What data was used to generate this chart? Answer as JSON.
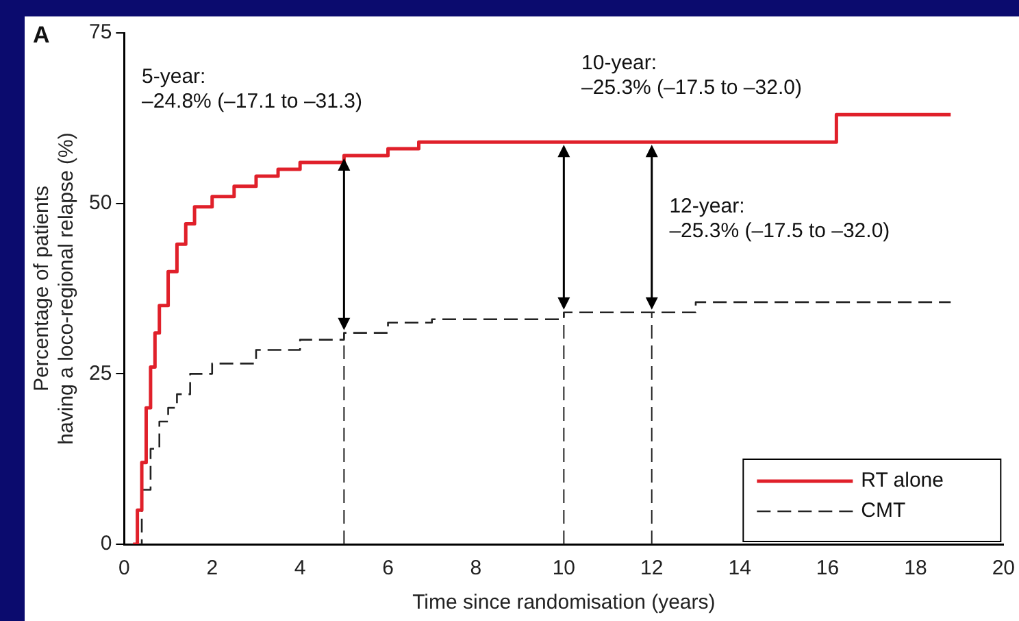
{
  "chart_data": {
    "type": "step",
    "xlabel": "Time since randomisation (years)",
    "ylabel": "Percentage of patients\nhaving a loco-regional relapse (%)",
    "xlim": [
      0,
      20
    ],
    "xticks": [
      0,
      2,
      4,
      6,
      8,
      10,
      12,
      14,
      16,
      18,
      20
    ],
    "ylim": [
      0,
      75
    ],
    "yticks": [
      0,
      25,
      50,
      75
    ],
    "grid": false,
    "legend": "bottom right",
    "marker": "none",
    "series": [
      {
        "name": "RT alone",
        "color": "#e0202a",
        "line_style": "solid",
        "x": [
          0.2,
          0.3,
          0.4,
          0.5,
          0.6,
          0.7,
          0.8,
          1.0,
          1.2,
          1.4,
          1.6,
          2.0,
          2.5,
          3.0,
          3.5,
          4.0,
          5.0,
          6.0,
          6.7,
          16.2,
          18.8
        ],
        "values": [
          0,
          5,
          12,
          20,
          26,
          31,
          35,
          40,
          44,
          47,
          49.5,
          51,
          52.5,
          54,
          55,
          56,
          57,
          58,
          59,
          63,
          63
        ]
      },
      {
        "name": "CMT",
        "color": "#222222",
        "line_style": "dashed",
        "x": [
          0.2,
          0.4,
          0.6,
          0.8,
          1.0,
          1.2,
          1.5,
          2.0,
          3.0,
          4.0,
          5.0,
          6.0,
          7.0,
          10.0,
          13.0,
          18.8
        ],
        "values": [
          0,
          8,
          14,
          18,
          20,
          22,
          25,
          26.5,
          28.5,
          30,
          31,
          32.5,
          33,
          34,
          35.5,
          35.5
        ]
      }
    ],
    "ref_lines": [
      {
        "axis": "x",
        "value": 5,
        "line_style": "dashed",
        "color": "#222222"
      },
      {
        "axis": "x",
        "value": 10,
        "line_style": "dashed",
        "color": "#222222"
      },
      {
        "axis": "x",
        "value": 12,
        "line_style": "dashed",
        "color": "#222222"
      }
    ],
    "annotations": [
      "A",
      "5-year:\n–24.8% (–17.1 to –31.3)",
      "10-year:\n–25.3% (–17.5 to –32.0)",
      "12-year:\n–25.3% (–17.5 to –32.0)"
    ]
  }
}
